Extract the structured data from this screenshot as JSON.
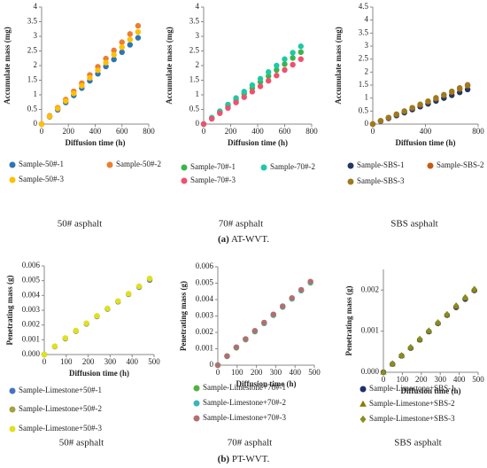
{
  "chart_data": [
    {
      "type": "scatter",
      "caption": "50# asphalt",
      "xlabel": "Diffusion time (h)",
      "ylabel": "Accumulate mass (mg)",
      "xlim": [
        0,
        800
      ],
      "xticks": [
        0,
        200,
        400,
        600,
        800
      ],
      "ylim": [
        0,
        4
      ],
      "yticks": [
        0,
        0.5,
        1,
        1.5,
        2,
        2.5,
        3,
        3.5,
        4
      ],
      "x": [
        0,
        60,
        120,
        180,
        240,
        300,
        360,
        420,
        480,
        540,
        600,
        660,
        720
      ],
      "series": [
        {
          "name": "Sample-50#-1",
          "color": "#2e75b6",
          "marker": "circle",
          "values": [
            0,
            0.25,
            0.49,
            0.74,
            0.98,
            1.23,
            1.48,
            1.72,
            1.97,
            2.21,
            2.46,
            2.71,
            2.95
          ]
        },
        {
          "name": "Sample-50#-2",
          "color": "#ed7d31",
          "marker": "circle",
          "values": [
            0,
            0.28,
            0.56,
            0.84,
            1.12,
            1.4,
            1.68,
            1.96,
            2.24,
            2.52,
            2.8,
            3.08,
            3.36
          ]
        },
        {
          "name": "Sample-50#-3",
          "color": "#ffc000",
          "marker": "circle",
          "values": [
            0,
            0.26,
            0.53,
            0.79,
            1.05,
            1.31,
            1.58,
            1.84,
            2.1,
            2.37,
            2.63,
            2.89,
            3.15
          ]
        }
      ]
    },
    {
      "type": "scatter",
      "caption": "70# asphalt",
      "xlabel": "Diffusion time (h)",
      "ylabel": "Accumulate mass (mg)",
      "xlim": [
        0,
        800
      ],
      "xticks": [
        0,
        200,
        400,
        600,
        800
      ],
      "ylim": [
        0,
        4
      ],
      "yticks": [
        0,
        0.5,
        1,
        1.5,
        2,
        2.5,
        3,
        3.5,
        4
      ],
      "x": [
        0,
        60,
        120,
        180,
        240,
        300,
        360,
        420,
        480,
        540,
        600,
        660,
        720
      ],
      "series": [
        {
          "name": "Sample-70#-1",
          "color": "#3cb44b",
          "marker": "circle",
          "values": [
            0,
            0.21,
            0.41,
            0.62,
            0.82,
            1.03,
            1.23,
            1.44,
            1.64,
            1.85,
            2.05,
            2.26,
            2.46
          ]
        },
        {
          "name": "Sample-70#-2",
          "color": "#1dc9a4",
          "marker": "circle",
          "values": [
            0,
            0.22,
            0.44,
            0.67,
            0.89,
            1.11,
            1.33,
            1.55,
            1.78,
            2.0,
            2.22,
            2.44,
            2.66
          ]
        },
        {
          "name": "Sample-70#-3",
          "color": "#f0506e",
          "marker": "circle",
          "values": [
            0,
            0.18,
            0.37,
            0.55,
            0.74,
            0.92,
            1.11,
            1.29,
            1.48,
            1.66,
            1.85,
            2.03,
            2.22
          ]
        }
      ]
    },
    {
      "type": "scatter",
      "caption": "SBS asphalt",
      "xlabel": "Diffusion time (h)",
      "ylabel": "Accumulate mass (mg)",
      "xlim": [
        0,
        800
      ],
      "xticks": [
        0,
        400,
        800
      ],
      "ylim": [
        0,
        4.5
      ],
      "yticks": [
        0,
        0.5,
        1,
        1.5,
        2,
        2.5,
        3,
        3.5,
        4,
        4.5
      ],
      "x": [
        0,
        60,
        120,
        180,
        240,
        300,
        360,
        420,
        480,
        540,
        600,
        660,
        720
      ],
      "series": [
        {
          "name": "Sample-SBS-1",
          "color": "#1f3864",
          "marker": "circle",
          "values": [
            0,
            0.11,
            0.22,
            0.33,
            0.44,
            0.56,
            0.67,
            0.78,
            0.89,
            1.0,
            1.11,
            1.22,
            1.33
          ]
        },
        {
          "name": "Sample-SBS-2",
          "color": "#c55a11",
          "marker": "circle",
          "values": [
            0,
            0.12,
            0.25,
            0.37,
            0.49,
            0.62,
            0.74,
            0.86,
            0.98,
            1.11,
            1.23,
            1.35,
            1.48
          ]
        },
        {
          "name": "Sample-SBS-3",
          "color": "#9c7a1e",
          "marker": "circle",
          "values": [
            0,
            0.13,
            0.25,
            0.38,
            0.5,
            0.63,
            0.76,
            0.88,
            1.01,
            1.13,
            1.26,
            1.39,
            1.51
          ]
        }
      ]
    },
    {
      "type": "scatter",
      "caption": "50# asphalt",
      "xlabel": "Diffusion time (h)",
      "ylabel": "Penetrating mass (g)",
      "xlim": [
        0,
        500
      ],
      "xticks": [
        0,
        100,
        200,
        300,
        400,
        500
      ],
      "ylim": [
        0,
        0.006
      ],
      "yticks": [
        {
          "value": 0,
          "label": "0.000"
        },
        {
          "value": 0.001,
          "label": "0.001"
        },
        {
          "value": 0.002,
          "label": "0.002"
        },
        {
          "value": 0.003,
          "label": "0.003"
        },
        {
          "value": 0.004,
          "label": "0.004"
        },
        {
          "value": 0.005,
          "label": "0.005"
        },
        {
          "value": 0.006,
          "label": "0.006"
        }
      ],
      "x": [
        0,
        48,
        96,
        144,
        192,
        240,
        288,
        336,
        384,
        432,
        480
      ],
      "series": [
        {
          "name": "Sample-Limestone+50#-1",
          "color": "#4472c4",
          "marker": "circle",
          "values": [
            0,
            0.00054,
            0.00108,
            0.00158,
            0.00208,
            0.00258,
            0.00308,
            0.00358,
            0.00408,
            0.00456,
            0.00505
          ]
        },
        {
          "name": "Sample-Limestone+50#-2",
          "color": "#a5a040",
          "marker": "circle",
          "values": [
            0,
            0.00055,
            0.0011,
            0.0016,
            0.0021,
            0.0026,
            0.0031,
            0.0036,
            0.0041,
            0.0046,
            0.0051
          ]
        },
        {
          "name": "Sample-Limestone+50#-3",
          "color": "#e0e020",
          "marker": "circle",
          "values": [
            0,
            0.00056,
            0.00112,
            0.00162,
            0.00212,
            0.00262,
            0.00312,
            0.00362,
            0.00412,
            0.00462,
            0.00515
          ]
        }
      ]
    },
    {
      "type": "scatter",
      "caption": "70# asphalt",
      "xlabel": "Diffusion time (h)",
      "ylabel": "Penetrating mass (g)",
      "xlim": [
        0,
        500
      ],
      "xticks": [
        0,
        100,
        200,
        300,
        400,
        500
      ],
      "ylim": [
        0,
        0.006
      ],
      "yticks": [
        0,
        0.001,
        0.002,
        0.003,
        0.004,
        0.005,
        0.006
      ],
      "x": [
        0,
        48,
        96,
        144,
        192,
        240,
        288,
        336,
        384,
        432,
        480
      ],
      "series": [
        {
          "name": "Sample-Limestone+70#-1",
          "color": "#55b040",
          "marker": "circle",
          "values": [
            0,
            0.00054,
            0.00106,
            0.00156,
            0.00205,
            0.00255,
            0.00305,
            0.00355,
            0.00405,
            0.00455,
            0.00503
          ]
        },
        {
          "name": "Sample-Limestone+70#-2",
          "color": "#3cb4c0",
          "marker": "circle",
          "values": [
            0,
            0.00055,
            0.00108,
            0.00158,
            0.00207,
            0.00257,
            0.00307,
            0.00357,
            0.00407,
            0.00457,
            0.00506
          ]
        },
        {
          "name": "Sample-Limestone+70#-3",
          "color": "#b07070",
          "marker": "circle",
          "values": [
            0,
            0.00056,
            0.0011,
            0.0016,
            0.0021,
            0.0026,
            0.0031,
            0.0036,
            0.0041,
            0.0046,
            0.0051
          ]
        }
      ]
    },
    {
      "type": "scatter",
      "caption": "SBS asphalt",
      "xlabel": "Diffusion time (h)",
      "ylabel": "Penetrating mass (g)",
      "xlim": [
        0,
        500
      ],
      "xticks": [
        0,
        100,
        200,
        300,
        400,
        500
      ],
      "ylim": [
        0,
        0.0025
      ],
      "yticks": [
        {
          "value": 0,
          "label": "0.000"
        },
        {
          "value": 0.001,
          "label": "0.001"
        },
        {
          "value": 0.002,
          "label": "0.002"
        }
      ],
      "x": [
        0,
        48,
        96,
        144,
        192,
        240,
        288,
        336,
        384,
        432,
        480
      ],
      "series": [
        {
          "name": "Sample-Limestone+SBS-1",
          "color": "#1f2f6e",
          "marker": "circle",
          "values": [
            0,
            0.0002,
            0.0004,
            0.00059,
            0.00079,
            0.00099,
            0.00119,
            0.00139,
            0.00158,
            0.00178,
            0.00199
          ]
        },
        {
          "name": "Sample-Limestone+SBS-2",
          "color": "#8c7a00",
          "marker": "triangle",
          "values": [
            0,
            0.0002,
            0.0004,
            0.0006,
            0.0008,
            0.001,
            0.0012,
            0.0014,
            0.0016,
            0.0018,
            0.002
          ]
        },
        {
          "name": "Sample-Limestone+SBS-3",
          "color": "#8c8c20",
          "marker": "diamond",
          "values": [
            0,
            0.00021,
            0.00041,
            0.00061,
            0.00081,
            0.00101,
            0.00121,
            0.00141,
            0.00162,
            0.00182,
            0.00202
          ]
        }
      ]
    }
  ],
  "figure_labels": [
    {
      "tag": "(a)",
      "text": "AT-WVT."
    },
    {
      "tag": "(b)",
      "text": "PT-WVT."
    }
  ]
}
